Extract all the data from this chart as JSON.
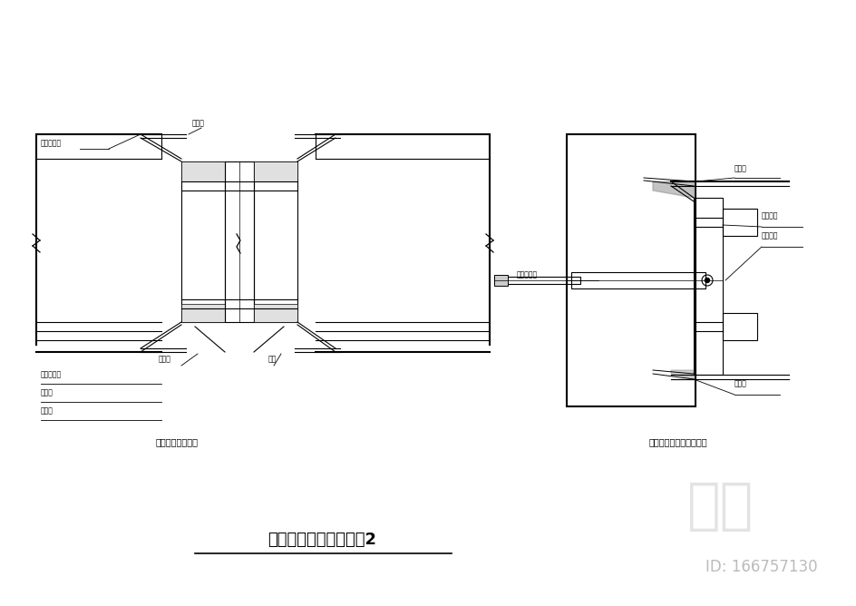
{
  "bg_color": "#ffffff",
  "line_color": "#000000",
  "title": "铝合金门窗安装节点图2",
  "subtitle_left": "铝合金窗收口节点",
  "subtitle_right": "铝合金窗与墙体固定节点",
  "watermark": "知末",
  "watermark_id": "ID: 166757130",
  "fig_width": 9.45,
  "fig_height": 6.68,
  "dpi": 100
}
